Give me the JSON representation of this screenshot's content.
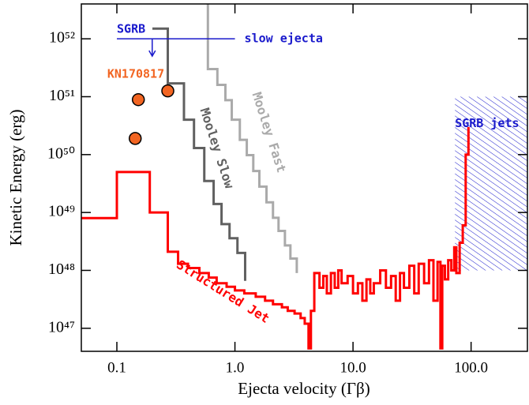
{
  "chart_data": {
    "type": "line",
    "xscale": "log",
    "yscale": "log",
    "xlabel": "Ejecta velocity (Γβ)",
    "ylabel": "Kinetic Energy (erg)",
    "xlim": [
      0.05,
      300
    ],
    "ylim": [
      4e+46,
      4e+52
    ],
    "xticks": [
      {
        "value": 0.1,
        "label": "0.1"
      },
      {
        "value": 1,
        "label": "1.0"
      },
      {
        "value": 10,
        "label": "10.0"
      },
      {
        "value": 100,
        "label": "100.0"
      }
    ],
    "yticks": [
      {
        "value": 1e+47,
        "label": "10⁴⁷"
      },
      {
        "value": 1e+48,
        "label": "10⁴⁸"
      },
      {
        "value": 1e+49,
        "label": "10⁴⁹"
      },
      {
        "value": 1e+50,
        "label": "10⁵⁰"
      },
      {
        "value": 1e+51,
        "label": "10⁵¹"
      },
      {
        "value": 1e+52,
        "label": "10⁵²"
      }
    ],
    "series": [
      {
        "name": "Structured Jet",
        "color": "#ff0000",
        "style": "step",
        "x": [
          0.05,
          0.1,
          0.19,
          0.27,
          0.33,
          0.4,
          0.5,
          0.6,
          0.7,
          0.85,
          1.0,
          1.2,
          1.5,
          1.8,
          2.1,
          2.5,
          2.8,
          3.2,
          3.6,
          3.9,
          4.2,
          4.4,
          4.7,
          5.2,
          5.6,
          6.0,
          6.5,
          7,
          7.5,
          8,
          9,
          10,
          11,
          12,
          13,
          14,
          15,
          17,
          19,
          21,
          23,
          25,
          27,
          30,
          33,
          36,
          40,
          44,
          48,
          52,
          55,
          57,
          60,
          64,
          68,
          72,
          75,
          80,
          85,
          90,
          95
        ],
        "values": [
          8e+48,
          5e+49,
          1e+49,
          2.1e+48,
          1.3e+48,
          1.1e+48,
          9e+47,
          7.5e+47,
          6e+47,
          5.2e+47,
          4.5e+47,
          4e+47,
          3.5e+47,
          3e+47,
          2.6e+47,
          2.3e+47,
          2e+47,
          1.8e+47,
          1.5e+47,
          1.2e+47,
          4.5e+46,
          2e+47,
          9e+47,
          5e+47,
          8e+47,
          4e+47,
          9e+47,
          5e+47,
          1e+48,
          6e+47,
          8e+47,
          4e+47,
          6e+47,
          3e+47,
          7e+47,
          4e+47,
          6e+47,
          1e+48,
          5e+47,
          8e+47,
          3e+47,
          9e+47,
          5e+47,
          1.2e+48,
          4e+47,
          1.3e+48,
          6e+47,
          1.5e+48,
          3e+47,
          1.4e+48,
          4.5e+46,
          1.2e+48,
          7e+47,
          1.5e+48,
          1e+48,
          2.5e+48,
          9e+47,
          3e+48,
          6e+48,
          1e+50,
          3e+50
        ]
      },
      {
        "name": "Mooley Slow",
        "color": "#606060",
        "style": "step",
        "x": [
          0.2,
          0.27,
          0.37,
          0.45,
          0.55,
          0.66,
          0.77,
          0.9,
          1.05,
          1.22
        ],
        "values": [
          1.5e+52,
          1.7e+51,
          4e+50,
          1.3e+50,
          3.5e+49,
          1.4e+49,
          6.3e+48,
          3.6e+48,
          2e+48,
          6.6e+47
        ]
      },
      {
        "name": "Mooley Fast",
        "color": "#aaaaaa",
        "style": "step",
        "x": [
          0.59,
          0.59,
          0.71,
          0.83,
          0.94,
          1.1,
          1.26,
          1.43,
          1.61,
          1.85,
          2.1,
          2.34,
          2.65,
          2.95,
          3.34
        ],
        "values": [
          4e+52,
          3e+51,
          1.6e+51,
          8.7e+50,
          4e+50,
          1.8e+50,
          9.8e+49,
          5.2e+49,
          2.8e+49,
          1.5e+49,
          8.1e+48,
          4.8e+48,
          2.7e+48,
          1.6e+48,
          9e+47
        ]
      },
      {
        "name": "KN170817",
        "color": "#f26522",
        "style": "marker",
        "x": [
          0.152,
          0.27,
          0.143
        ],
        "values": [
          8.9e+50,
          1.26e+51,
          1.9e+50
        ]
      },
      {
        "name": "SGRB",
        "annotation": "slow ejecta",
        "color": "#1a1acc",
        "style": "upper-limit",
        "x": [
          0.1,
          1.0
        ],
        "values": [
          1e+52,
          1e+52
        ]
      }
    ],
    "regions": [
      {
        "name": "SGRB jets",
        "color": "#1a1acc",
        "xrange": [
          73,
          300
        ],
        "yrange": [
          1e+48,
          1e+51
        ]
      }
    ]
  }
}
